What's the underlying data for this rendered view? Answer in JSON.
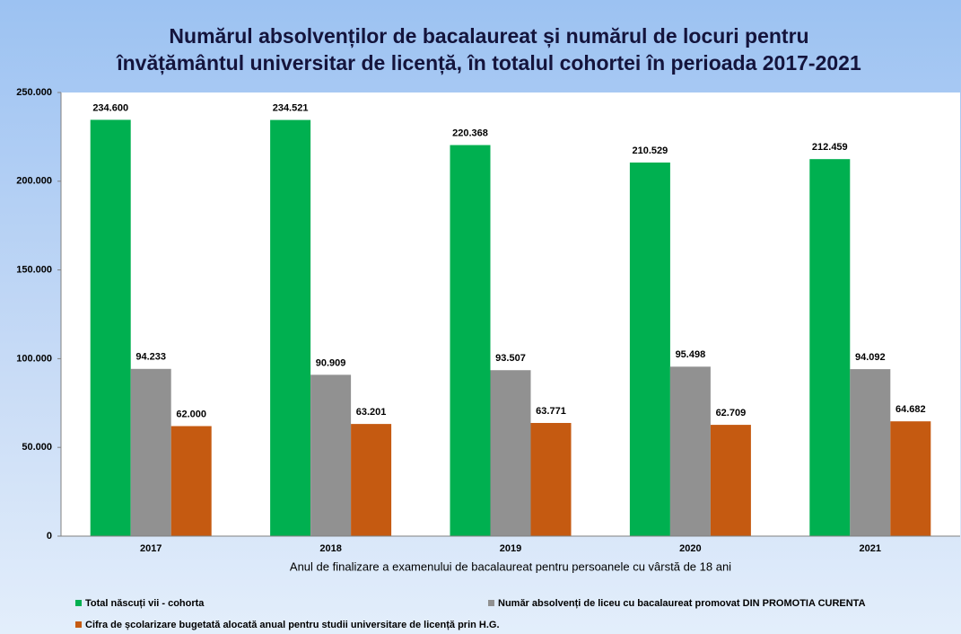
{
  "chart_data": {
    "type": "bar",
    "title": [
      "Numărul absolvenților de bacalaureat și numărul de locuri pentru",
      "învățământul universitar de licență, în totalul cohortei în perioada 2017-2021"
    ],
    "x_label": "Anul de finalizare a examenului de bacalaureat pentru persoanele cu vârstă de 18 ani",
    "categories": [
      "2017",
      "2018",
      "2019",
      "2020",
      "2021"
    ],
    "series": [
      {
        "name": "Total născuți vii - cohorta",
        "color": "#00b050",
        "values": [
          234600,
          234521,
          220368,
          210529,
          212459
        ],
        "value_labels": [
          "234.600",
          "234.521",
          "220.368",
          "210.529",
          "212.459"
        ]
      },
      {
        "name": "Număr absolvenți de liceu cu bacalaureat promovat DIN PROMOTIA CURENTA",
        "color": "#919191",
        "values": [
          94233,
          90909,
          93507,
          95498,
          94092
        ],
        "value_labels": [
          "94.233",
          "90.909",
          "93.507",
          "95.498",
          "94.092"
        ]
      },
      {
        "name": "Cifra de școlarizare bugetată alocată anual pentru studii universitare de licență prin H.G.",
        "color": "#c55a11",
        "values": [
          62000,
          63201,
          63771,
          62709,
          64682
        ],
        "value_labels": [
          "62.000",
          "63.201",
          "63.771",
          "62.709",
          "64.682"
        ]
      }
    ],
    "ylim": [
      0,
      250000
    ],
    "yticks": [
      0,
      {
        "value": 50000,
        "label": "50.000"
      },
      {
        "value": 100000,
        "label": "100.000"
      },
      {
        "value": 150000,
        "label": "150.000"
      },
      {
        "value": 200000,
        "label": "200.000"
      },
      {
        "value": 250000,
        "label": "250.000"
      }
    ],
    "grid": false
  }
}
